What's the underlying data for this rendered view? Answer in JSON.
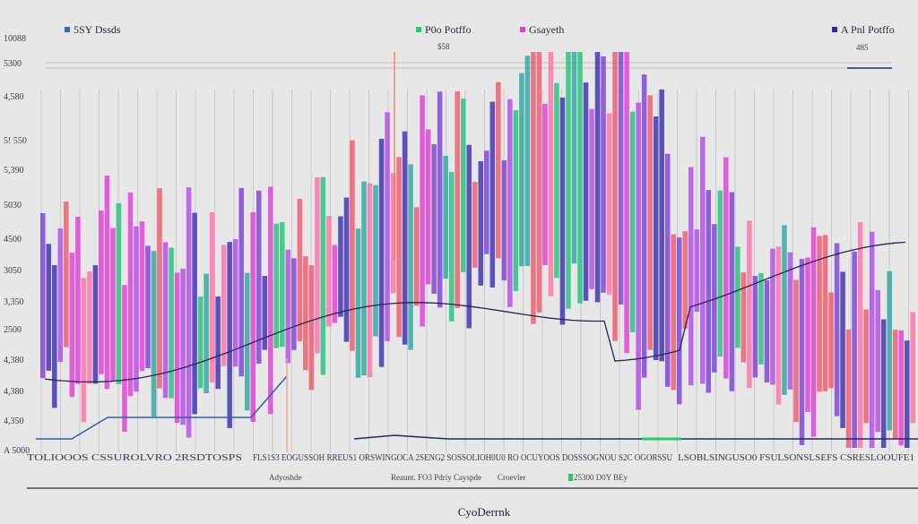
{
  "chart_data": {
    "type": "bar",
    "title": "",
    "xlabel": "CyoDerrnk",
    "ylabel": "",
    "y_tick_labels": [
      "10088",
      "5300",
      "4,580",
      "5! 550",
      "5,390",
      "5030",
      "4500",
      "3050",
      "3,350",
      "2500",
      "4,380",
      "4,380",
      "4,350",
      "A 5000"
    ],
    "legend_position": "top",
    "grid": true,
    "legend": [
      {
        "label": "5SY Dssds",
        "color": "#2f6fbf"
      },
      {
        "label": "P0o Potffo",
        "color": "#22cc66"
      },
      {
        "label": "Gsayeth",
        "color": "#e040d8"
      },
      {
        "label": "A Pnl Potffo",
        "color": "#3b1f9e"
      }
    ],
    "annotations": [
      "$58",
      "485"
    ],
    "sub_labels": [
      "Adyoshde",
      "Reaunt. FO3 Pdriy Cayspde",
      "Croevler",
      "25300 D0Y BEy"
    ],
    "x_tick_text_left": "TOLIOOOS CSSUROLVRO 2RSDTOSPS",
    "x_tick_text_mid": "FLS1S3 EOGUSSOH RREUS1 ORSWINGOCA 2SENG2 SOSSOLIOH0U0 RO OCUYOOS DOSSSOGNOU S2C OGORSSU",
    "x_tick_text_right": "LSOBLSINGUSO0 FSULSONSLSEFS CSRESLOOUFE1",
    "series": [
      {
        "name": "5SY Dssds",
        "values": [
          410,
          420,
          395,
          405,
          435,
          415,
          455,
          445,
          430,
          460,
          420,
          410,
          455,
          445,
          470,
          430,
          415,
          440,
          470,
          425,
          460,
          455,
          435,
          430,
          400,
          390,
          445,
          415,
          455,
          410
        ]
      },
      {
        "name": "P0o Potffo",
        "values": [
          430,
          440,
          420,
          455,
          450,
          460,
          430,
          470,
          475,
          450,
          490,
          480,
          460,
          470,
          450,
          440,
          465,
          480,
          500,
          510,
          470,
          455,
          440,
          430,
          420,
          410,
          450,
          480,
          470,
          460
        ]
      },
      {
        "name": "Gsayeth",
        "values": [
          470,
          455,
          480,
          470,
          485,
          465,
          480,
          495,
          505,
          480,
          470,
          490,
          505,
          515,
          530,
          495,
          475,
          455,
          470,
          500,
          515,
          535,
          520,
          480,
          465,
          470,
          485,
          500,
          490,
          510
        ]
      },
      {
        "name": "A Pnl Potffo",
        "values": [
          2450,
          2510,
          2580,
          2620,
          2700,
          2760,
          2900,
          2820,
          3050,
          3150,
          3240,
          3300,
          3420,
          3500,
          3570,
          3680,
          3720,
          3810,
          3790,
          3950,
          3980,
          4020,
          4100,
          4000,
          3890,
          3820,
          3950,
          4060,
          4120,
          4180
        ]
      }
    ]
  }
}
